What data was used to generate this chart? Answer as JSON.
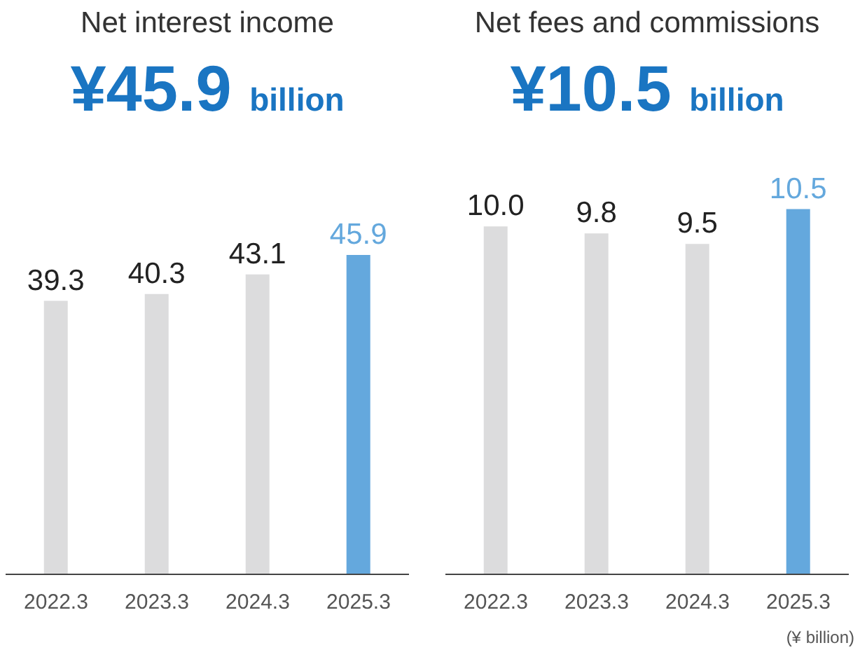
{
  "chart_data": [
    {
      "type": "bar",
      "title": "Net interest income",
      "subtitle": "¥45.9 billion",
      "categories": [
        "2022.3",
        "2023.3",
        "2024.3",
        "2025.3"
      ],
      "values": [
        39.3,
        40.3,
        43.1,
        45.9
      ],
      "value_labels": [
        "39.3",
        "40.3",
        "43.1",
        "45.9"
      ],
      "colors": [
        "#dcdcdd",
        "#dcdcdd",
        "#dcdcdd",
        "#64a8dd"
      ],
      "tick_labels": "x",
      "grid": false,
      "legend": false
    },
    {
      "type": "bar",
      "title": "Net fees and commissions",
      "subtitle": "¥10.5 billion",
      "categories": [
        "2022.3",
        "2023.3",
        "2024.3",
        "2025.3"
      ],
      "values": [
        10.0,
        9.8,
        9.5,
        10.5
      ],
      "value_labels": [
        "10.0",
        "9.8",
        "9.5",
        "10.5"
      ],
      "colors": [
        "#dcdcdd",
        "#dcdcdd",
        "#dcdcdd",
        "#64a8dd"
      ],
      "tick_labels": "x",
      "grid": false,
      "legend": false,
      "annotations": [
        "(¥ billion)"
      ]
    }
  ]
}
